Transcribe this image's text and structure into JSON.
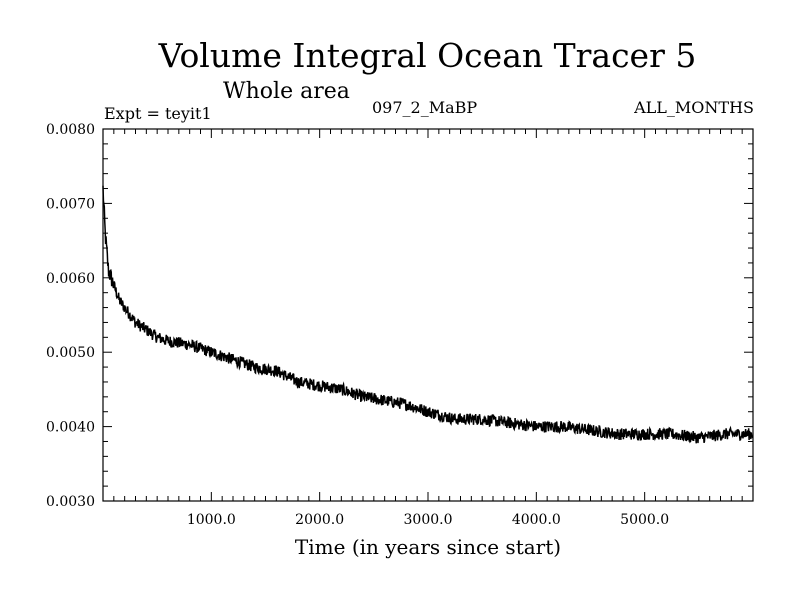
{
  "chart_data": {
    "type": "line",
    "title": "Volume Integral Ocean Tracer 5",
    "subtitle": "Whole area",
    "annotations": {
      "left": "Expt = teyit1",
      "center": "097_2_MaBP",
      "right": "ALL_MONTHS"
    },
    "xlabel": "Time (in years since start)",
    "ylabel": "",
    "xlim": [
      0,
      6000
    ],
    "ylim": [
      0.003,
      0.008
    ],
    "x_ticks": [
      1000,
      2000,
      3000,
      4000,
      5000
    ],
    "x_tick_labels": [
      "1000.0",
      "2000.0",
      "3000.0",
      "4000.0",
      "5000.0"
    ],
    "y_ticks": [
      0.003,
      0.004,
      0.005,
      0.006,
      0.007,
      0.008
    ],
    "y_tick_labels": [
      "0.0030",
      "0.0040",
      "0.0050",
      "0.0060",
      "0.0070",
      "0.0080"
    ],
    "grid": false,
    "legend": "none",
    "line_color": "#000000",
    "series": [
      {
        "x": [
          0,
          20,
          50,
          100,
          150,
          200,
          300,
          400,
          500,
          600,
          800,
          1000,
          1200,
          1400,
          1600,
          1800,
          2000,
          2200,
          2400,
          2600,
          2800,
          3000,
          3250,
          3500,
          3750,
          4000,
          4250,
          4500,
          4750,
          5000,
          5250,
          5500,
          5750,
          5999
        ],
        "values": [
          0.0072,
          0.0066,
          0.0061,
          0.0059,
          0.0057,
          0.0056,
          0.0054,
          0.0053,
          0.0052,
          0.00515,
          0.0051,
          0.005,
          0.0049,
          0.0048,
          0.00475,
          0.0046,
          0.00455,
          0.0045,
          0.0044,
          0.00435,
          0.0043,
          0.0042,
          0.0041,
          0.0041,
          0.00405,
          0.004,
          0.004,
          0.00395,
          0.0039,
          0.0039,
          0.0039,
          0.00385,
          0.0039,
          0.0039
        ]
      }
    ]
  }
}
